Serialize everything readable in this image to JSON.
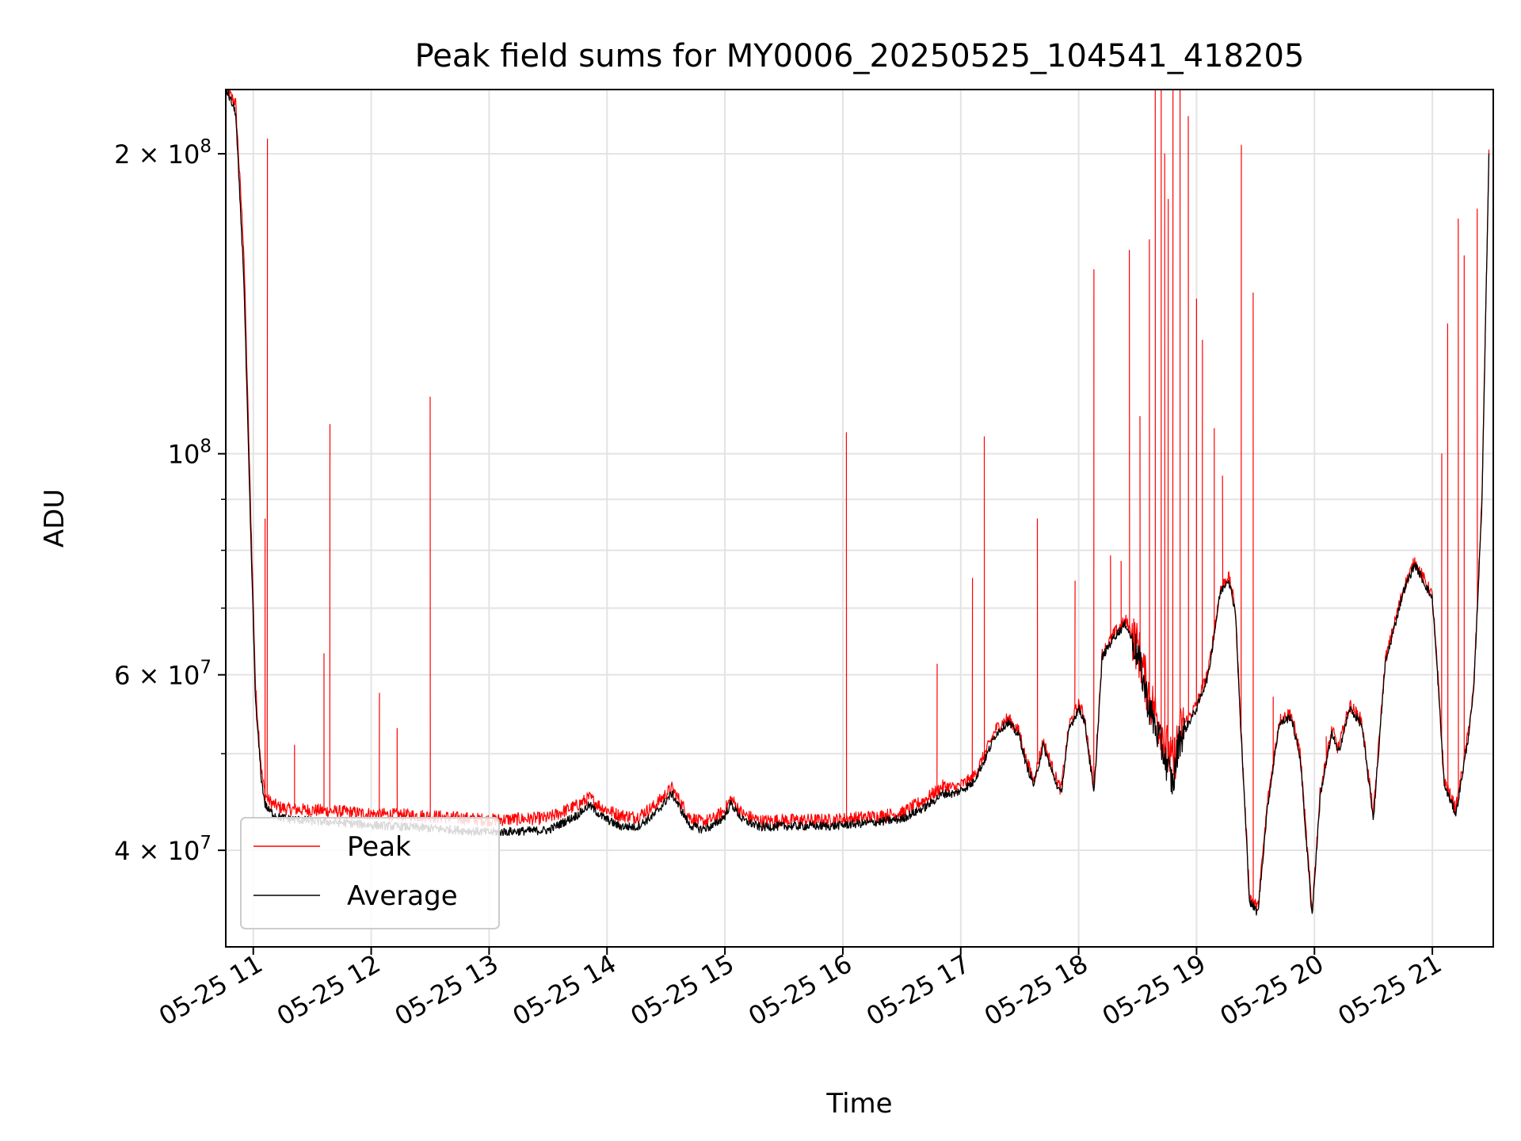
{
  "chart_data": {
    "type": "line",
    "title": "Peak field sums for MY0006_20250525_104541_418205",
    "xlabel": "Time",
    "ylabel": "ADU",
    "yscale": "log",
    "xlim": [
      "05-25 10:46",
      "05-25 21:31"
    ],
    "ylim": [
      32000000,
      232000000
    ],
    "grid": true,
    "legend_position": "lower left",
    "x_ticks": [
      "05-25 11",
      "05-25 12",
      "05-25 13",
      "05-25 14",
      "05-25 15",
      "05-25 16",
      "05-25 17",
      "05-25 18",
      "05-25 19",
      "05-25 20",
      "05-25 21"
    ],
    "y_ticks": [
      {
        "value": 40000000,
        "mantissa": "4",
        "exp": "7",
        "show_mantissa": true
      },
      {
        "value": 60000000,
        "mantissa": "6",
        "exp": "7",
        "show_mantissa": true
      },
      {
        "value": 100000000,
        "mantissa": "",
        "exp": "8",
        "show_mantissa": false
      },
      {
        "value": 200000000,
        "mantissa": "2",
        "exp": "8",
        "show_mantissa": true
      }
    ],
    "series": [
      {
        "name": "Peak",
        "color": "#ff0000",
        "baseline_x": [
          10.77,
          10.85,
          10.92,
          10.97,
          11.02,
          11.07,
          11.1,
          11.13,
          11.17,
          11.22,
          11.3,
          11.5,
          11.8,
          12.0,
          12.5,
          13.0,
          13.5,
          13.75,
          13.85,
          13.95,
          14.1,
          14.25,
          14.4,
          14.55,
          14.7,
          14.8,
          14.9,
          15.0,
          15.05,
          15.15,
          15.3,
          15.5,
          15.7,
          15.9,
          16.1,
          16.3,
          16.5,
          16.7,
          16.85,
          16.95,
          17.1,
          17.2,
          17.3,
          17.4,
          17.5,
          17.55,
          17.62,
          17.7,
          17.8,
          17.85,
          17.92,
          18.0,
          18.05,
          18.13,
          18.2,
          18.3,
          18.4,
          18.5,
          18.6,
          18.7,
          18.8,
          18.85,
          19.0,
          19.1,
          19.2,
          19.27,
          19.33,
          19.37,
          19.45,
          19.52,
          19.6,
          19.7,
          19.8,
          19.88,
          19.93,
          19.98,
          20.05,
          20.15,
          20.2,
          20.3,
          20.4,
          20.5,
          20.6,
          20.75,
          20.85,
          20.9,
          21.0,
          21.05,
          21.1,
          21.2,
          21.3,
          21.35,
          21.42,
          21.48
        ],
        "baseline_y": [
          232000000,
          225000000,
          160000000,
          95000000,
          58000000,
          48000000,
          45500000,
          44900000,
          44500000,
          44200000,
          44000000,
          43900000,
          43700000,
          43500000,
          43300000,
          42900000,
          43100000,
          44400000,
          45200000,
          44200000,
          43400000,
          43200000,
          44300000,
          46200000,
          43200000,
          42700000,
          43000000,
          43900000,
          45100000,
          43500000,
          42800000,
          42900000,
          42900000,
          42900000,
          43100000,
          43300000,
          43600000,
          45000000,
          46400000,
          46200000,
          47200000,
          49800000,
          53000000,
          54300000,
          52500000,
          49500000,
          47000000,
          51500000,
          47500000,
          46000000,
          53500000,
          56000000,
          54500000,
          46000000,
          63000000,
          66000000,
          68000000,
          64000000,
          57000000,
          53000000,
          48500000,
          52500000,
          56000000,
          60500000,
          73000000,
          75500000,
          70000000,
          55000000,
          36000000,
          35000000,
          44500000,
          54000000,
          55000000,
          50000000,
          41500000,
          34800000,
          46000000,
          53000000,
          50500000,
          56000000,
          54000000,
          43500000,
          62000000,
          73000000,
          78000000,
          76000000,
          72000000,
          59000000,
          47000000,
          44000000,
          52000000,
          58000000,
          90000000,
          200000000
        ],
        "spikes": [
          {
            "x": 11.1,
            "y": 86000000
          },
          {
            "x": 11.12,
            "y": 207000000
          },
          {
            "x": 11.35,
            "y": 51000000
          },
          {
            "x": 11.6,
            "y": 63000000
          },
          {
            "x": 11.65,
            "y": 107000000
          },
          {
            "x": 12.07,
            "y": 57500000
          },
          {
            "x": 12.22,
            "y": 53000000
          },
          {
            "x": 12.5,
            "y": 114000000
          },
          {
            "x": 16.03,
            "y": 105000000
          },
          {
            "x": 16.8,
            "y": 61500000
          },
          {
            "x": 17.1,
            "y": 75000000
          },
          {
            "x": 17.2,
            "y": 104000000
          },
          {
            "x": 17.65,
            "y": 86000000
          },
          {
            "x": 17.97,
            "y": 74500000
          },
          {
            "x": 18.13,
            "y": 153000000
          },
          {
            "x": 18.27,
            "y": 79000000
          },
          {
            "x": 18.36,
            "y": 78000000
          },
          {
            "x": 18.43,
            "y": 160000000
          },
          {
            "x": 18.52,
            "y": 109000000
          },
          {
            "x": 18.6,
            "y": 164000000
          },
          {
            "x": 18.65,
            "y": 232000000
          },
          {
            "x": 18.7,
            "y": 232000000
          },
          {
            "x": 18.73,
            "y": 200000000
          },
          {
            "x": 18.76,
            "y": 180000000
          },
          {
            "x": 18.8,
            "y": 232000000
          },
          {
            "x": 18.86,
            "y": 232000000
          },
          {
            "x": 18.93,
            "y": 218000000
          },
          {
            "x": 19.0,
            "y": 143000000
          },
          {
            "x": 19.05,
            "y": 130000000
          },
          {
            "x": 19.15,
            "y": 106000000
          },
          {
            "x": 19.22,
            "y": 95000000
          },
          {
            "x": 19.38,
            "y": 204000000
          },
          {
            "x": 19.48,
            "y": 145000000
          },
          {
            "x": 19.65,
            "y": 57000000
          },
          {
            "x": 20.1,
            "y": 52000000
          },
          {
            "x": 21.08,
            "y": 100000000
          },
          {
            "x": 21.13,
            "y": 135000000
          },
          {
            "x": 21.22,
            "y": 172000000
          },
          {
            "x": 21.27,
            "y": 158000000
          },
          {
            "x": 21.38,
            "y": 176000000
          }
        ]
      },
      {
        "name": "Average",
        "color": "#000000",
        "baseline_x": [
          10.77,
          10.85,
          10.92,
          10.97,
          11.02,
          11.07,
          11.1,
          11.13,
          11.17,
          11.22,
          11.3,
          11.5,
          11.8,
          12.0,
          12.5,
          13.0,
          13.5,
          13.75,
          13.85,
          13.95,
          14.1,
          14.25,
          14.4,
          14.55,
          14.7,
          14.8,
          14.9,
          15.0,
          15.05,
          15.15,
          15.3,
          15.5,
          15.7,
          15.9,
          16.1,
          16.3,
          16.5,
          16.7,
          16.85,
          16.95,
          17.1,
          17.2,
          17.3,
          17.4,
          17.5,
          17.55,
          17.62,
          17.7,
          17.8,
          17.85,
          17.92,
          18.0,
          18.05,
          18.13,
          18.2,
          18.3,
          18.4,
          18.5,
          18.6,
          18.7,
          18.8,
          18.85,
          19.0,
          19.1,
          19.2,
          19.27,
          19.33,
          19.37,
          19.45,
          19.52,
          19.6,
          19.7,
          19.8,
          19.88,
          19.93,
          19.98,
          20.05,
          20.15,
          20.2,
          20.3,
          20.4,
          20.5,
          20.6,
          20.75,
          20.85,
          20.9,
          21.0,
          21.05,
          21.1,
          21.2,
          21.3,
          21.35,
          21.42,
          21.48
        ],
        "baseline_y": [
          232000000,
          220000000,
          150000000,
          90000000,
          56000000,
          47000000,
          44500000,
          43900000,
          43500000,
          43200000,
          43000000,
          42800000,
          42600000,
          42400000,
          42100000,
          41700000,
          41900000,
          43400000,
          44400000,
          43300000,
          42300000,
          42200000,
          43400000,
          45600000,
          42400000,
          42000000,
          42300000,
          43300000,
          44600000,
          42900000,
          42200000,
          42300000,
          42300000,
          42300000,
          42500000,
          42700000,
          43000000,
          44200000,
          45600000,
          45600000,
          46700000,
          49200000,
          52400000,
          53800000,
          52000000,
          49000000,
          46500000,
          51000000,
          47000000,
          45500000,
          53000000,
          55500000,
          54000000,
          45500000,
          62500000,
          65500000,
          67500000,
          63000000,
          55500000,
          51000000,
          46500000,
          51500000,
          55500000,
          60000000,
          72500000,
          75000000,
          69500000,
          54500000,
          35500000,
          34600000,
          44000000,
          53500000,
          54500000,
          49500000,
          41000000,
          34400000,
          45500000,
          52500000,
          50000000,
          55500000,
          53500000,
          43000000,
          61500000,
          72500000,
          77500000,
          75500000,
          71500000,
          58500000,
          46500000,
          43500000,
          51500000,
          57500000,
          89000000,
          200000000
        ]
      }
    ]
  }
}
